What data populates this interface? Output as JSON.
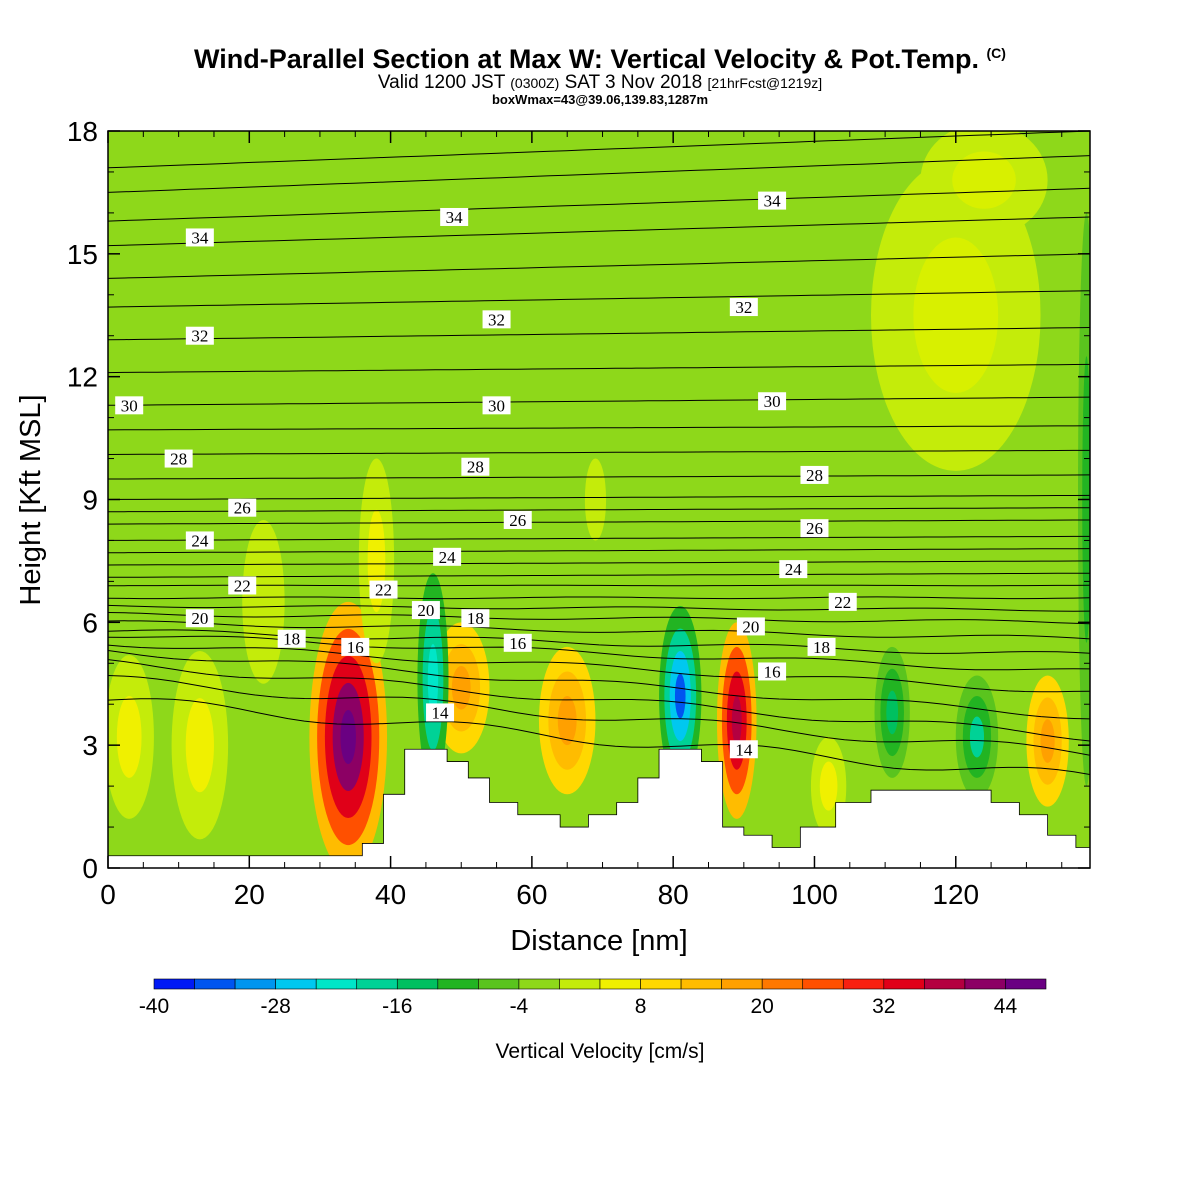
{
  "header": {
    "title_main": "Wind-Parallel Section at Max W: Vertical Velocity & Pot.Temp.",
    "title_mark": "(C)",
    "valid_prefix": "Valid 1200 JST",
    "valid_utc": "(0300Z)",
    "valid_date": "SAT 3 Nov 2018",
    "valid_fcst": "[21hrFcst@1219z]",
    "box_info": "boxWmax=43@39.06,139.83,1287m"
  },
  "colors": {
    "background_field": "#8ed81a",
    "terrain": "#ffffff",
    "contour": "#000000"
  },
  "chart_data": {
    "type": "heatmap",
    "xlabel": "Distance [nm]",
    "ylabel": "Height [Kft MSL]",
    "xlim": [
      0,
      139
    ],
    "ylim": [
      0,
      18
    ],
    "x_ticks": [
      "0",
      "20",
      "40",
      "60",
      "80",
      "100",
      "120"
    ],
    "y_ticks": [
      "0",
      "3",
      "6",
      "9",
      "12",
      "15",
      "18"
    ],
    "colorbar": {
      "label": "Vertical Velocity [cm/s]",
      "tick_labels": [
        "-40",
        "-28",
        "-16",
        "-4",
        "8",
        "20",
        "32",
        "44"
      ],
      "colors": [
        "#0019f5",
        "#0055f0",
        "#0095f0",
        "#00c8f0",
        "#00e6c8",
        "#00d296",
        "#00c060",
        "#22b422",
        "#5ac41e",
        "#8ed81a",
        "#c4ec0a",
        "#f0f000",
        "#ffd800",
        "#ffbc00",
        "#ffa000",
        "#ff7800",
        "#ff5000",
        "#f82010",
        "#e00018",
        "#b40040",
        "#8c0064",
        "#6a0082"
      ]
    },
    "terrain": [
      {
        "x": 0,
        "h": 0.3
      },
      {
        "x": 34,
        "h": 0.3
      },
      {
        "x": 36,
        "h": 0.6
      },
      {
        "x": 39,
        "h": 1.8
      },
      {
        "x": 42,
        "h": 2.9
      },
      {
        "x": 48,
        "h": 2.6
      },
      {
        "x": 51,
        "h": 2.2
      },
      {
        "x": 54,
        "h": 1.6
      },
      {
        "x": 58,
        "h": 1.3
      },
      {
        "x": 64,
        "h": 1.0
      },
      {
        "x": 68,
        "h": 1.3
      },
      {
        "x": 72,
        "h": 1.6
      },
      {
        "x": 75,
        "h": 2.2
      },
      {
        "x": 78,
        "h": 2.9
      },
      {
        "x": 84,
        "h": 2.6
      },
      {
        "x": 87,
        "h": 1.0
      },
      {
        "x": 90,
        "h": 0.8
      },
      {
        "x": 94,
        "h": 0.5
      },
      {
        "x": 98,
        "h": 1.0
      },
      {
        "x": 103,
        "h": 1.6
      },
      {
        "x": 108,
        "h": 1.9
      },
      {
        "x": 122,
        "h": 1.9
      },
      {
        "x": 125,
        "h": 1.6
      },
      {
        "x": 129,
        "h": 1.3
      },
      {
        "x": 133,
        "h": 0.8
      },
      {
        "x": 137,
        "h": 0.5
      },
      {
        "x": 139,
        "h": 0.7
      }
    ],
    "velocity_blobs": [
      {
        "x": 34,
        "y": 3.2,
        "rx": 5.5,
        "ry": 3.3,
        "colors": [
          "#ffbc00",
          "#ff5000",
          "#e00018",
          "#8c0064",
          "#6a0082"
        ]
      },
      {
        "x": 50,
        "y": 4.4,
        "rx": 4.0,
        "ry": 1.6,
        "colors": [
          "#ffd800",
          "#ffbc00",
          "#ffa000"
        ]
      },
      {
        "x": 65,
        "y": 3.6,
        "rx": 4.0,
        "ry": 1.8,
        "colors": [
          "#ffd800",
          "#ffbc00",
          "#ffa000"
        ]
      },
      {
        "x": 81,
        "y": 4.2,
        "rx": 3.0,
        "ry": 2.2,
        "colors": [
          "#22b422",
          "#00d296",
          "#00c8f0",
          "#0055f0"
        ]
      },
      {
        "x": 89,
        "y": 3.6,
        "rx": 2.8,
        "ry": 2.4,
        "colors": [
          "#ffbc00",
          "#ff5000",
          "#e00018",
          "#b40040"
        ]
      },
      {
        "x": 46,
        "y": 4.6,
        "rx": 2.2,
        "ry": 2.6,
        "colors": [
          "#22b422",
          "#00d296",
          "#00e6c8"
        ]
      },
      {
        "x": 111,
        "y": 3.8,
        "rx": 2.5,
        "ry": 1.6,
        "colors": [
          "#5ac41e",
          "#22b422",
          "#00c060"
        ]
      },
      {
        "x": 123,
        "y": 3.2,
        "rx": 3.0,
        "ry": 1.5,
        "colors": [
          "#5ac41e",
          "#22b422",
          "#00d296"
        ]
      },
      {
        "x": 133,
        "y": 3.1,
        "rx": 3.0,
        "ry": 1.6,
        "colors": [
          "#ffd800",
          "#ffbc00",
          "#ffa000"
        ]
      },
      {
        "x": 13,
        "y": 3.0,
        "rx": 4.0,
        "ry": 2.3,
        "colors": [
          "#c4ec0a",
          "#f0f000"
        ]
      },
      {
        "x": 3,
        "y": 3.2,
        "rx": 3.5,
        "ry": 2.0,
        "colors": [
          "#c4ec0a",
          "#f0f000"
        ]
      },
      {
        "x": 120,
        "y": 13.5,
        "rx": 12.0,
        "ry": 3.8,
        "colors": [
          "#c4ec0a",
          "#d8f000"
        ]
      },
      {
        "x": 124,
        "y": 16.8,
        "rx": 9.0,
        "ry": 1.4,
        "colors": [
          "#c4ec0a",
          "#d8f000"
        ]
      },
      {
        "x": 138.5,
        "y": 9.0,
        "rx": 1.2,
        "ry": 7.0,
        "colors": [
          "#5ac41e",
          "#22b422"
        ]
      },
      {
        "x": 38,
        "y": 7.5,
        "rx": 2.5,
        "ry": 2.5,
        "colors": [
          "#c4ec0a",
          "#f0f000"
        ]
      },
      {
        "x": 22,
        "y": 6.5,
        "rx": 3.0,
        "ry": 2.0,
        "colors": [
          "#c4ec0a"
        ]
      },
      {
        "x": 69,
        "y": 9.0,
        "rx": 1.5,
        "ry": 1.0,
        "colors": [
          "#c4ec0a"
        ]
      },
      {
        "x": 102,
        "y": 2.0,
        "rx": 2.5,
        "ry": 1.2,
        "colors": [
          "#c4ec0a",
          "#f0f000"
        ]
      }
    ],
    "isentropes": [
      {
        "y0": 4.1,
        "y1": 2.2
      },
      {
        "y0": 4.6,
        "y1": 2.8
      },
      {
        "y0": 5.0,
        "y1": 3.2
      },
      {
        "y0": 5.3,
        "y1": 3.7
      },
      {
        "y0": 5.5,
        "y1": 4.3
      },
      {
        "y0": 5.7,
        "y1": 4.8
      },
      {
        "y0": 5.8,
        "y1": 5.2
      },
      {
        "y0": 6.0,
        "y1": 5.6
      },
      {
        "y0": 6.2,
        "y1": 6.0
      },
      {
        "y0": 6.4,
        "y1": 6.3
      },
      {
        "y0": 6.6,
        "y1": 6.6
      },
      {
        "y0": 6.9,
        "y1": 6.9
      },
      {
        "y0": 7.1,
        "y1": 7.2
      },
      {
        "y0": 7.4,
        "y1": 7.5
      },
      {
        "y0": 7.7,
        "y1": 7.8
      },
      {
        "y0": 8.0,
        "y1": 8.1
      },
      {
        "y0": 8.4,
        "y1": 8.5
      },
      {
        "y0": 8.7,
        "y1": 8.8
      },
      {
        "y0": 9.0,
        "y1": 9.1
      },
      {
        "y0": 9.5,
        "y1": 9.6
      },
      {
        "y0": 10.1,
        "y1": 10.2
      },
      {
        "y0": 10.7,
        "y1": 10.8
      },
      {
        "y0": 11.3,
        "y1": 11.5
      },
      {
        "y0": 12.1,
        "y1": 12.3
      },
      {
        "y0": 12.9,
        "y1": 13.2
      },
      {
        "y0": 13.7,
        "y1": 14.1
      },
      {
        "y0": 14.4,
        "y1": 15.0
      },
      {
        "y0": 15.2,
        "y1": 15.9
      },
      {
        "y0": 15.8,
        "y1": 16.6
      },
      {
        "y0": 16.5,
        "y1": 17.4
      },
      {
        "y0": 17.1,
        "y1": 18.0
      }
    ],
    "contour_labels": [
      {
        "text": "34",
        "x": 13,
        "y": 15.4
      },
      {
        "text": "34",
        "x": 49,
        "y": 15.9
      },
      {
        "text": "34",
        "x": 94,
        "y": 16.3
      },
      {
        "text": "32",
        "x": 13,
        "y": 13.0
      },
      {
        "text": "32",
        "x": 55,
        "y": 13.4
      },
      {
        "text": "32",
        "x": 90,
        "y": 13.7
      },
      {
        "text": "30",
        "x": 3,
        "y": 11.3
      },
      {
        "text": "30",
        "x": 55,
        "y": 11.3
      },
      {
        "text": "30",
        "x": 94,
        "y": 11.4
      },
      {
        "text": "28",
        "x": 10,
        "y": 10.0
      },
      {
        "text": "28",
        "x": 52,
        "y": 9.8
      },
      {
        "text": "28",
        "x": 100,
        "y": 9.6
      },
      {
        "text": "26",
        "x": 19,
        "y": 8.8
      },
      {
        "text": "26",
        "x": 58,
        "y": 8.5
      },
      {
        "text": "26",
        "x": 100,
        "y": 8.3
      },
      {
        "text": "24",
        "x": 13,
        "y": 8.0
      },
      {
        "text": "24",
        "x": 48,
        "y": 7.6
      },
      {
        "text": "24",
        "x": 97,
        "y": 7.3
      },
      {
        "text": "22",
        "x": 19,
        "y": 6.9
      },
      {
        "text": "22",
        "x": 39,
        "y": 6.8
      },
      {
        "text": "22",
        "x": 104,
        "y": 6.5
      },
      {
        "text": "20",
        "x": 13,
        "y": 6.1
      },
      {
        "text": "20",
        "x": 45,
        "y": 6.3
      },
      {
        "text": "20",
        "x": 91,
        "y": 5.9
      },
      {
        "text": "18",
        "x": 26,
        "y": 5.6
      },
      {
        "text": "18",
        "x": 52,
        "y": 6.1
      },
      {
        "text": "18",
        "x": 101,
        "y": 5.4
      },
      {
        "text": "16",
        "x": 35,
        "y": 5.4
      },
      {
        "text": "16",
        "x": 58,
        "y": 5.5
      },
      {
        "text": "16",
        "x": 94,
        "y": 4.8
      },
      {
        "text": "14",
        "x": 47,
        "y": 3.8
      },
      {
        "text": "14",
        "x": 90,
        "y": 2.9
      }
    ]
  }
}
